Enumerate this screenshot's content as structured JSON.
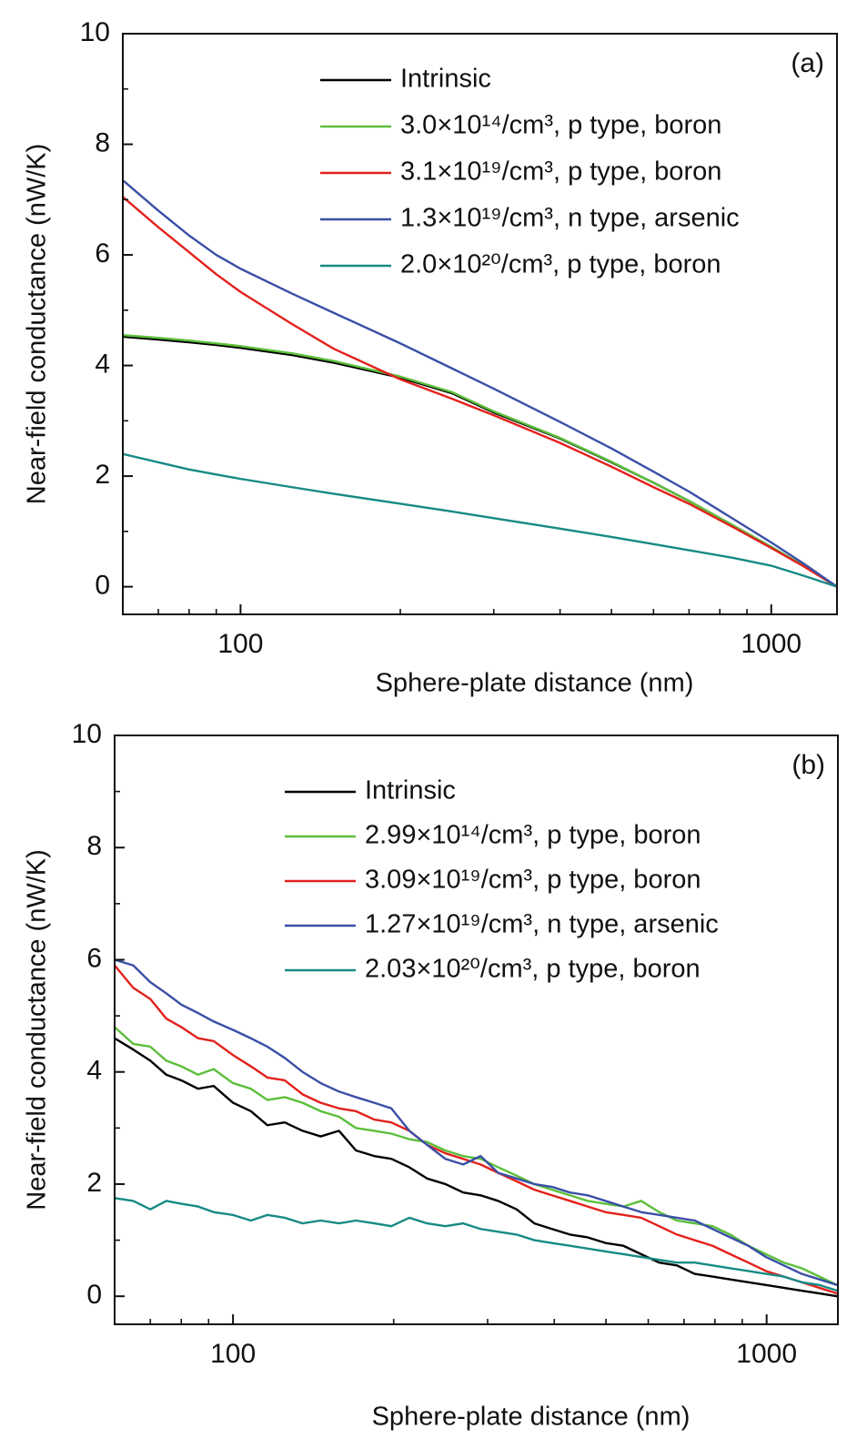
{
  "chart_data": [
    {
      "type": "line",
      "panel_label": "(a)",
      "x_label": "Sphere-plate distance (nm)",
      "y_label": "Near-field conductance (nW/K)",
      "xscale": "log",
      "xlim": [
        60,
        1330
      ],
      "xticks": [
        100,
        1000
      ],
      "xminorticks": [
        60,
        70,
        80,
        90,
        200,
        300,
        400,
        500,
        600,
        700,
        800,
        900
      ],
      "ylim": [
        -0.5,
        10
      ],
      "yticks": [
        0,
        2,
        4,
        6,
        8,
        10
      ],
      "yminorticks": [
        1,
        3,
        5,
        7,
        9
      ],
      "grid": false,
      "legend": "upper right",
      "x": [
        60,
        70,
        80,
        90,
        100,
        125,
        150,
        200,
        250,
        300,
        400,
        500,
        600,
        700,
        850,
        1000,
        1150,
        1330
      ],
      "series": [
        {
          "name": "Intrinsic",
          "color": "#000000",
          "values": [
            4.52,
            4.47,
            4.42,
            4.37,
            4.32,
            4.19,
            4.05,
            3.78,
            3.5,
            3.15,
            2.68,
            2.25,
            1.88,
            1.55,
            1.1,
            0.72,
            0.38,
            0
          ]
        },
        {
          "name": "3.0×10¹⁴/cm³, p type, boron",
          "color": "#5cbf3a",
          "values": [
            4.55,
            4.5,
            4.45,
            4.4,
            4.35,
            4.22,
            4.08,
            3.8,
            3.52,
            3.17,
            2.69,
            2.26,
            1.88,
            1.55,
            1.1,
            0.72,
            0.38,
            0
          ]
        },
        {
          "name": "3.1×10¹⁹/cm³, p type, boron",
          "color": "#e3211c",
          "values": [
            7.05,
            6.5,
            6.05,
            5.65,
            5.33,
            4.75,
            4.3,
            3.75,
            3.4,
            3.1,
            2.6,
            2.17,
            1.8,
            1.5,
            1.07,
            0.7,
            0.37,
            0
          ]
        },
        {
          "name": "1.3×10¹⁹/cm³, n type, arsenic",
          "color": "#3a4fa6",
          "values": [
            7.35,
            6.8,
            6.35,
            6.0,
            5.75,
            5.3,
            4.95,
            4.4,
            3.95,
            3.58,
            2.98,
            2.5,
            2.08,
            1.72,
            1.22,
            0.8,
            0.42,
            0
          ]
        },
        {
          "name": "2.0×10²⁰/cm³, p type, boron",
          "color": "#178a86",
          "values": [
            2.4,
            2.25,
            2.12,
            2.03,
            1.95,
            1.8,
            1.68,
            1.5,
            1.36,
            1.24,
            1.05,
            0.9,
            0.77,
            0.66,
            0.52,
            0.38,
            0.2,
            0
          ]
        }
      ]
    },
    {
      "type": "line",
      "panel_label": "(b)",
      "x_label": "Sphere-plate distance (nm)",
      "y_label": "Near-field conductance (nW/K)",
      "xscale": "log",
      "xlim": [
        60,
        1360
      ],
      "xticks": [
        100,
        1000
      ],
      "xminorticks": [
        60,
        70,
        80,
        90,
        200,
        300,
        400,
        500,
        600,
        700,
        800,
        900
      ],
      "ylim": [
        -0.5,
        10
      ],
      "yticks": [
        0,
        2,
        4,
        6,
        8,
        10
      ],
      "yminorticks": [
        1,
        3,
        5,
        7,
        9
      ],
      "grid": false,
      "legend": "upper right",
      "x": [
        60,
        65,
        70,
        75,
        80,
        86,
        92,
        100,
        108,
        116,
        125,
        135,
        146,
        158,
        170,
        184,
        198,
        214,
        231,
        250,
        270,
        291,
        314,
        340,
        367,
        396,
        428,
        462,
        499,
        539,
        582,
        629,
        679,
        733,
        792,
        855,
        924,
        997,
        1077,
        1163,
        1256,
        1356
      ],
      "series": [
        {
          "name": "Intrinsic",
          "color": "#000000",
          "values": [
            4.6,
            4.4,
            4.2,
            3.95,
            3.85,
            3.7,
            3.75,
            3.45,
            3.3,
            3.05,
            3.1,
            2.95,
            2.85,
            2.95,
            2.6,
            2.5,
            2.45,
            2.3,
            2.1,
            2.0,
            1.85,
            1.8,
            1.7,
            1.55,
            1.3,
            1.2,
            1.1,
            1.05,
            0.95,
            0.9,
            0.75,
            0.6,
            0.55,
            0.4,
            0.35,
            0.3,
            0.25,
            0.2,
            0.15,
            0.1,
            0.05,
            0.0
          ]
        },
        {
          "name": "2.99×10¹⁴/cm³, p type, boron",
          "color": "#5cbf3a",
          "values": [
            4.8,
            4.5,
            4.45,
            4.2,
            4.1,
            3.95,
            4.05,
            3.8,
            3.7,
            3.5,
            3.55,
            3.45,
            3.3,
            3.2,
            3.0,
            2.95,
            2.9,
            2.8,
            2.75,
            2.6,
            2.5,
            2.45,
            2.3,
            2.15,
            2.0,
            1.9,
            1.8,
            1.7,
            1.65,
            1.6,
            1.7,
            1.5,
            1.35,
            1.3,
            1.25,
            1.1,
            0.9,
            0.75,
            0.6,
            0.5,
            0.35,
            0.2
          ]
        },
        {
          "name": "3.09×10¹⁹/cm³, p type, boron",
          "color": "#e3211c",
          "values": [
            5.9,
            5.5,
            5.3,
            4.95,
            4.8,
            4.6,
            4.55,
            4.3,
            4.1,
            3.9,
            3.85,
            3.6,
            3.45,
            3.35,
            3.3,
            3.15,
            3.1,
            2.95,
            2.7,
            2.55,
            2.45,
            2.35,
            2.2,
            2.05,
            1.9,
            1.8,
            1.7,
            1.6,
            1.5,
            1.45,
            1.4,
            1.25,
            1.1,
            1.0,
            0.9,
            0.75,
            0.6,
            0.45,
            0.35,
            0.25,
            0.15,
            0.05
          ]
        },
        {
          "name": "1.27×10¹⁹/cm³, n type, arsenic",
          "color": "#3a4fa6",
          "values": [
            6.0,
            5.9,
            5.6,
            5.4,
            5.2,
            5.05,
            4.9,
            4.75,
            4.6,
            4.45,
            4.25,
            4.0,
            3.8,
            3.65,
            3.55,
            3.45,
            3.35,
            2.95,
            2.7,
            2.45,
            2.35,
            2.5,
            2.2,
            2.1,
            2.0,
            1.95,
            1.85,
            1.8,
            1.7,
            1.6,
            1.5,
            1.45,
            1.4,
            1.35,
            1.2,
            1.05,
            0.9,
            0.7,
            0.55,
            0.4,
            0.3,
            0.2
          ]
        },
        {
          "name": "2.03×10²⁰/cm³, p type, boron",
          "color": "#178a86",
          "values": [
            1.75,
            1.7,
            1.55,
            1.7,
            1.65,
            1.6,
            1.5,
            1.45,
            1.35,
            1.45,
            1.4,
            1.3,
            1.35,
            1.3,
            1.35,
            1.3,
            1.25,
            1.4,
            1.3,
            1.25,
            1.3,
            1.2,
            1.15,
            1.1,
            1.0,
            0.95,
            0.9,
            0.85,
            0.8,
            0.75,
            0.7,
            0.65,
            0.6,
            0.6,
            0.55,
            0.5,
            0.45,
            0.4,
            0.35,
            0.25,
            0.2,
            0.1
          ]
        }
      ]
    }
  ]
}
